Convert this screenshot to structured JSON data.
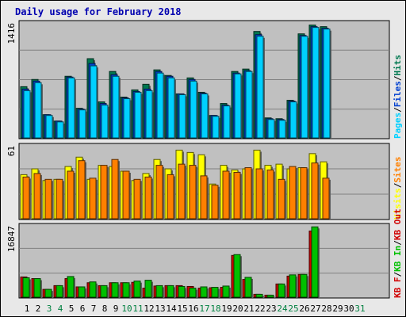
{
  "chart_data": {
    "type": "bar",
    "title": "Daily usage for February 2018",
    "categories": [
      "1",
      "2",
      "3",
      "4",
      "5",
      "6",
      "7",
      "8",
      "9",
      "10",
      "11",
      "12",
      "13",
      "14",
      "15",
      "16",
      "17",
      "18",
      "19",
      "20",
      "21",
      "22",
      "23",
      "24",
      "25",
      "26",
      "27",
      "28",
      "29",
      "30",
      "31"
    ],
    "weekend_days": [
      3,
      4,
      10,
      11,
      17,
      18,
      24,
      25,
      31
    ],
    "colors": {
      "title": "#0000b0",
      "day_label": "#000000",
      "weekend_label": "#008040",
      "hits": "#007850",
      "files": "#0040d0",
      "pages": "#00d0ff",
      "visits": "#ffff00",
      "sites": "#ff8000",
      "kb_in": "#00c000",
      "kb_out": "#d00000",
      "plot_bg": "#c0c0c0",
      "grid": "#808080"
    },
    "panels": [
      {
        "max_label": "1416",
        "ylim": [
          0,
          1416
        ],
        "legend": [
          "Pages",
          "/",
          "Files",
          "/",
          "Hits"
        ],
        "series": [
          {
            "name": "Hits",
            "values": [
              630,
              720,
              280,
              200,
              760,
              360,
              980,
              440,
              820,
              500,
              590,
              660,
              840,
              770,
              540,
              740,
              560,
              270,
              420,
              820,
              850,
              1320,
              240,
              230,
              460,
              1290,
              1400,
              1380,
              0,
              0,
              0
            ]
          },
          {
            "name": "Files",
            "values": [
              600,
              700,
              280,
              200,
              750,
              350,
              920,
              420,
              780,
              490,
              570,
              600,
              820,
              760,
              540,
              720,
              550,
              270,
              400,
              800,
              830,
              1280,
              230,
              220,
              450,
              1270,
              1380,
              1360,
              0,
              0,
              0
            ]
          },
          {
            "name": "Pages",
            "values": [
              580,
              680,
              270,
              190,
              740,
              340,
              890,
              400,
              760,
              480,
              560,
              580,
              800,
              740,
              530,
              700,
              540,
              260,
              390,
              790,
              820,
              1260,
              220,
              210,
              440,
              1260,
              1370,
              1350,
              0,
              0,
              0
            ]
          }
        ]
      },
      {
        "max_label": "61",
        "ylim": [
          0,
          61
        ],
        "legend": [
          "Visits",
          "/",
          "Sites"
        ],
        "series": [
          {
            "name": "Visits",
            "values": [
              37,
              42,
              32,
              33,
              44,
              52,
              33,
              45,
              44,
              40,
              32,
              38,
              50,
              42,
              58,
              56,
              54,
              29,
              45,
              41,
              42,
              58,
              45,
              46,
              42,
              43,
              55,
              48,
              0,
              0,
              0
            ]
          },
          {
            "name": "Sites",
            "values": [
              35,
              38,
              33,
              33,
              40,
              49,
              34,
              45,
              50,
              40,
              33,
              35,
              45,
              37,
              46,
              45,
              36,
              28,
              40,
              39,
              43,
              42,
              41,
              33,
              44,
              43,
              47,
              34,
              0,
              0,
              0
            ]
          }
        ]
      },
      {
        "max_label": "16847",
        "ylim": [
          0,
          16847
        ],
        "legend": [
          "KB F",
          "/",
          "KB In",
          "/",
          "KB Out"
        ],
        "series": [
          {
            "name": "KB F",
            "values": [
              4700,
              4300,
              1700,
              2600,
              4300,
              2300,
              3300,
              2600,
              3300,
              3300,
              3400,
              2000,
              2500,
              2600,
              2600,
              2400,
              2000,
              2100,
              2200,
              9900,
              4100,
              500,
              300,
              3000,
              4900,
              5300,
              15800,
              0,
              0,
              0,
              0
            ]
          },
          {
            "name": "KB In",
            "values": [
              4500,
              4300,
              1700,
              2600,
              4800,
              2300,
              3500,
              2600,
              3300,
              3300,
              3700,
              3900,
              2600,
              2600,
              2400,
              2000,
              2300,
              2200,
              2500,
              10100,
              4600,
              500,
              300,
              3000,
              5200,
              5300,
              16800,
              0,
              0,
              0,
              0
            ]
          }
        ]
      }
    ]
  }
}
